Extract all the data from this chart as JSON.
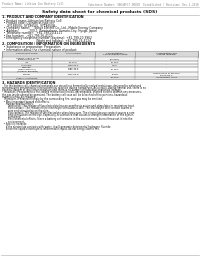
{
  "bg_color": "#ffffff",
  "header_top_left": "Product Name: Lithium Ion Battery Cell",
  "header_top_right": "Substance Number: SB640FCT-00018  Established / Revision: Dec.1.2010",
  "title": "Safety data sheet for chemical products (SDS)",
  "section1_title": "1. PRODUCT AND COMPANY IDENTIFICATION",
  "section1_lines": [
    "  • Product name: Lithium Ion Battery Cell",
    "  • Product code: Cylindrical-type cell",
    "      SY18650U, SY18650L, SY18650A",
    "  • Company name:     Sanyo Electric Co., Ltd., Mobile Energy Company",
    "  • Address:            200-1  Kaminakaen, Sumoto-City, Hyogo, Japan",
    "  • Telephone number:   +81-799-20-4111",
    "  • Fax number:   +81-799-26-4123",
    "  • Emergency telephone number (daytime): +81-799-20-3962",
    "                                       (Night and holiday): +81-799-26-4124"
  ],
  "section2_title": "2. COMPOSITION / INFORMATION ON INGREDIENTS",
  "section2_intro": "  • Substance or preparation: Preparation",
  "section2_sub": "  • Information about the chemical nature of product:",
  "table_col_labels": [
    "Component name",
    "CAS number",
    "Concentration /\nConcentration range",
    "Classification and\nhazard labeling"
  ],
  "table_rows": [
    [
      "Lithium cobalt oxide\n(LiMn/Co/Ni/O4)",
      "-",
      "(30-60%)",
      "-"
    ],
    [
      "Iron",
      "26-00-8",
      "15-25%",
      "-"
    ],
    [
      "Aluminum",
      "7429-90-5",
      "2-6%",
      "-"
    ],
    [
      "Graphite\n(Flake graphite)\n(Artificial graphite)",
      "7782-42-5\n7782-44-2",
      "10-25%",
      "-"
    ],
    [
      "Copper",
      "7440-50-8",
      "5-15%",
      "Sensitization of the skin\ngroup No.2"
    ],
    [
      "Organic electrolyte",
      "-",
      "10-20%",
      "Inflammable liquid"
    ]
  ],
  "section3_title": "3. HAZARDS IDENTIFICATION",
  "section3_para1": [
    "   For the battery cell, chemical materials are stored in a hermetically sealed metal case, designed to withstand",
    "temperatures generated by electrochemical reaction during normal use. As a result, during normal use, there is no",
    "physical danger of ignition or explosion and there is no danger of hazardous materials leakage.",
    "   However, if exposed to a fire, added mechanical shocks, decomposed, shorted electric without any measures,",
    "the gas inside cannot be operated. The battery cell case will be breached of fire-portions, hazardous",
    "materials may be released.",
    "   Moreover, if heated strongly by the surrounding fire, soot gas may be emitted."
  ],
  "section3_bullet1_title": "  • Most important hazard and effects:",
  "section3_bullet1_lines": [
    "     Human health effects:",
    "        Inhalation: The release of the electrolyte has an anesthesia action and stimulates in respiratory tract.",
    "        Skin contact: The release of the electrolyte stimulates a skin. The electrolyte skin contact causes a",
    "        sore and stimulation on the skin.",
    "        Eye contact: The release of the electrolyte stimulates eyes. The electrolyte eye contact causes a sore",
    "        and stimulation on the eye. Especially, a substance that causes a strong inflammation of the eyes is",
    "        contained.",
    "        Environmental effects: Since a battery cell remains in the environment, do not throw out it into the",
    "        environment."
  ],
  "section3_bullet2_title": "  • Specific hazards:",
  "section3_bullet2_lines": [
    "     If the electrolyte contacts with water, it will generate detrimental hydrogen fluoride.",
    "     Since the liquid electrolyte is inflammable liquid, do not bring close to fire."
  ],
  "footer_line": true
}
